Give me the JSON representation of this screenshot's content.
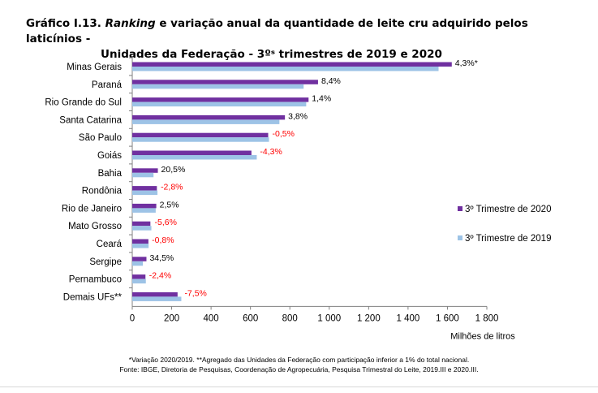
{
  "header": {
    "title_prefix": "Gráfico I.13.",
    "title_italic": "Ranking",
    "title_rest": "e variação anual da quantidade de leite cru adquirido pelos laticínios -",
    "title_line2": "Unidades da Federação - 3ºˢ trimestres de 2019 e 2020"
  },
  "footnotes": {
    "line1": "*Variação 2020/2019. **Agregado das Unidades da Federação com participação inferior a 1% do total nacional.",
    "line2": "Fonte: IBGE, Diretoria de Pesquisas, Coordenação de Agropecuária, Pesquisa Trimestral do Leite, 2019.III e 2020.III."
  },
  "colors": {
    "series2020": "#7030a0",
    "series2019": "#9dc3e6",
    "negative": "#ff0000",
    "positive": "#000000",
    "axis": "#808080"
  },
  "chart_data": {
    "type": "bar",
    "orientation": "horizontal",
    "categories": [
      "Minas Gerais",
      "Paraná",
      "Rio Grande do Sul",
      "Santa Catarina",
      "São Paulo",
      "Goiás",
      "Bahia",
      "Rondônia",
      "Rio de Janeiro",
      "Mato Grosso",
      "Ceará",
      "Sergipe",
      "Pernambuco",
      "Demais UFs**"
    ],
    "series": [
      {
        "name": "3º Trimestre de 2020",
        "values": [
          1622,
          943,
          895,
          775,
          690,
          605,
          130,
          125,
          122,
          92,
          82,
          72,
          67,
          230
        ]
      },
      {
        "name": "3º Trimestre de 2019",
        "values": [
          1555,
          870,
          883,
          747,
          694,
          632,
          108,
          128,
          119,
          97,
          83,
          54,
          69,
          249
        ]
      }
    ],
    "data_labels": [
      "4,3%*",
      "8,4%",
      "1,4%",
      "3,8%",
      "-0,5%",
      "-4,3%",
      "20,5%",
      "-2,8%",
      "2,5%",
      "-5,6%",
      "-0,8%",
      "34,5%",
      "-2,4%",
      "-7,5%"
    ],
    "xlabel": "Milhões de litros",
    "xlim": [
      0,
      1800
    ],
    "xticks": [
      "0",
      "200",
      "400",
      "600",
      "800",
      "1 000",
      "1 200",
      "1 400",
      "1 600",
      "1 800"
    ],
    "grid": false,
    "legend_position": "right"
  }
}
